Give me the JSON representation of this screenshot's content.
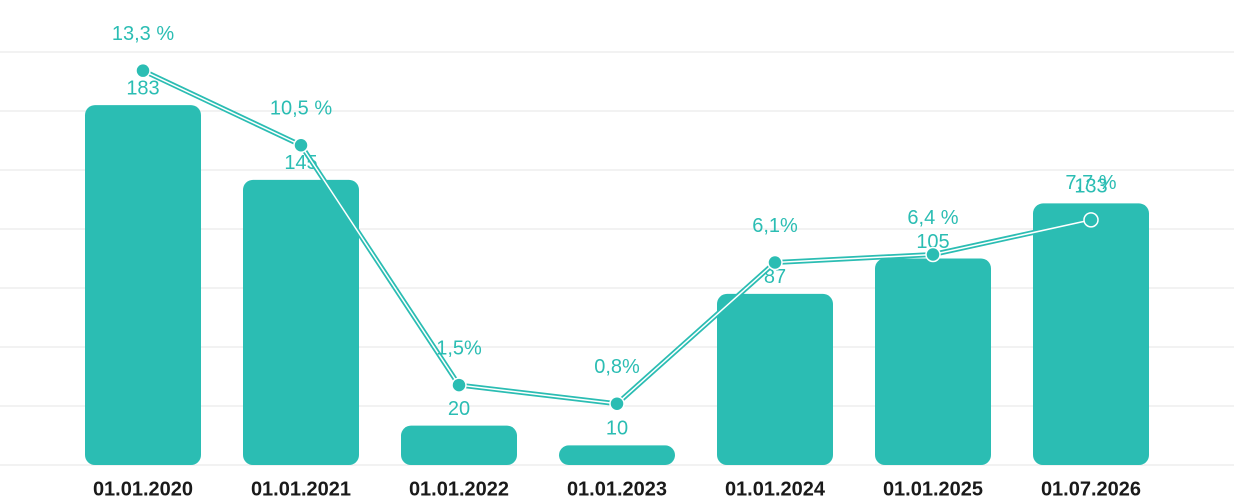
{
  "chart_data": {
    "type": "bar",
    "categories": [
      "01.01.2020",
      "01.01.2021",
      "01.01.2022",
      "01.01.2023",
      "01.01.2024",
      "01.01.2025",
      "01.07.2026"
    ],
    "series": [
      {
        "type": "bar",
        "color": "#2bbdb3",
        "values": [
          183,
          145,
          20,
          10,
          87,
          105,
          133
        ]
      },
      {
        "type": "line",
        "axis": "y2",
        "color": "#2bbdb3",
        "values": [
          13.3,
          10.5,
          1.5,
          0.8,
          6.1,
          6.4,
          7.7
        ],
        "value_labels": [
          "13,3 %",
          "10,5 %",
          "1,5%",
          "0,8%",
          "6,1%",
          "6,4 %",
          "7,7 %"
        ]
      }
    ],
    "ylim": [
      0,
      210
    ],
    "yticks": [
      0,
      30,
      60,
      90,
      120,
      150,
      180,
      210
    ],
    "y2lim": [
      -1.5,
      14
    ],
    "grid": true
  }
}
